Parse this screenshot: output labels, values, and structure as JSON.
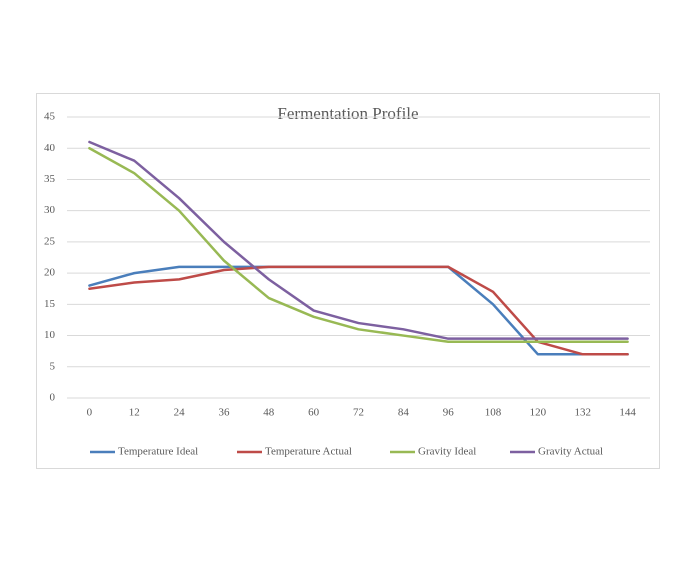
{
  "chart_data": {
    "type": "line",
    "title": "Fermentation Profile",
    "categories": [
      "0",
      "12",
      "24",
      "36",
      "48",
      "60",
      "72",
      "84",
      "96",
      "108",
      "120",
      "132",
      "144"
    ],
    "series": [
      {
        "name": "Temperature Ideal",
        "color": "#4a7ebb",
        "values": [
          18,
          20,
          21,
          21,
          21,
          21,
          21,
          21,
          21,
          15,
          7,
          7,
          7
        ]
      },
      {
        "name": "Temperature Actual",
        "color": "#be4b48",
        "values": [
          17.5,
          18.5,
          19,
          20.5,
          21,
          21,
          21,
          21,
          21,
          17,
          9,
          7,
          7
        ]
      },
      {
        "name": "Gravity Ideal",
        "color": "#98b954",
        "values": [
          40,
          36,
          30,
          22,
          16,
          13,
          11,
          10,
          9,
          9,
          9,
          9,
          9
        ]
      },
      {
        "name": "Gravity Actual",
        "color": "#7d60a0",
        "values": [
          41,
          38,
          32,
          25,
          19,
          14,
          12,
          11,
          9.5,
          9.5,
          9.5,
          9.5,
          9.5
        ]
      }
    ],
    "ylim": [
      0,
      45
    ],
    "yticks": [
      0,
      5,
      10,
      15,
      20,
      25,
      30,
      35,
      40,
      45
    ],
    "grid": true,
    "legend": "bottom"
  }
}
